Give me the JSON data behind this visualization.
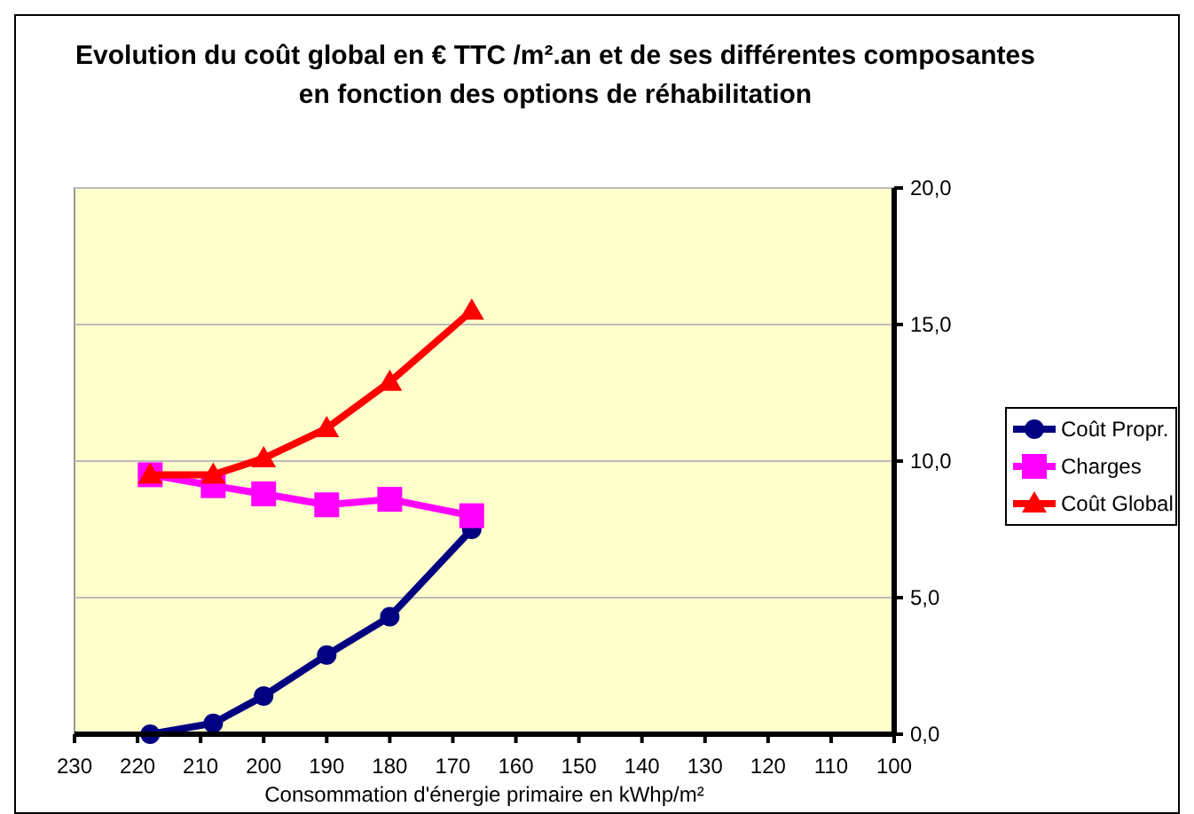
{
  "chart_data": {
    "type": "line",
    "title": "Evolution du coût global en € TTC /m².an et de ses différentes composantes en fonction des options de réhabilitation",
    "xlabel": "Consommation d'énergie primaire en kWhp/m²",
    "x": [
      218,
      208,
      200,
      190,
      180,
      167
    ],
    "xlim": [
      230,
      100
    ],
    "xticks": [
      230,
      220,
      210,
      200,
      190,
      180,
      170,
      160,
      150,
      140,
      130,
      120,
      110,
      100
    ],
    "ylim": [
      0,
      20
    ],
    "yticks": [
      {
        "value": 0,
        "label": "0,0"
      },
      {
        "value": 5,
        "label": "5,0"
      },
      {
        "value": 10,
        "label": "10,0"
      },
      {
        "value": 15,
        "label": "15,0"
      },
      {
        "value": 20,
        "label": "20,0"
      }
    ],
    "grid": "y",
    "legend": "right",
    "series": [
      {
        "name": "Coût Propr.",
        "color": "#000080",
        "marker": "circle",
        "values": [
          0,
          0.4,
          1.4,
          2.9,
          4.3,
          7.5
        ]
      },
      {
        "name": "Charges",
        "color": "#ff00ff",
        "marker": "square",
        "values": [
          9.5,
          9.1,
          8.8,
          8.4,
          8.6,
          8.0
        ]
      },
      {
        "name": "Coût Global",
        "color": "#ff0000",
        "marker": "triangle",
        "values": [
          9.5,
          9.5,
          10.1,
          11.2,
          12.9,
          15.5
        ]
      }
    ]
  }
}
